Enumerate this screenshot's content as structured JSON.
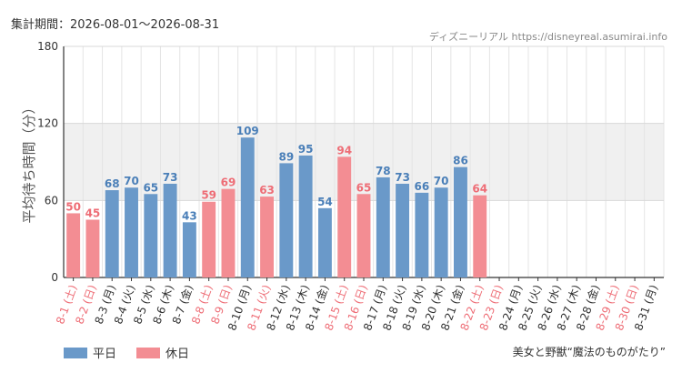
{
  "header": {
    "period": "集計期間：2026-08-01～2026-08-31",
    "source": "ディズニーリアル https://disneyreal.asumirai.info"
  },
  "footer": {
    "caption": "美女と野獣“魔法のものがたり”"
  },
  "colors": {
    "weekday": "#6a99c9",
    "holiday": "#f38d93",
    "weekday_text": "#4a7fb8",
    "holiday_text": "#ee6d76",
    "band": "#f0f0f0",
    "grid": "#e4e4e4",
    "axis": "#333333"
  },
  "chart_data": {
    "type": "bar",
    "ylabel": "平均待ち時間（分）",
    "ylim": [
      0,
      180
    ],
    "yticks": [
      0,
      60,
      120,
      180
    ],
    "band": [
      60,
      120
    ],
    "legend": [
      {
        "name": "平日",
        "kind": "weekday"
      },
      {
        "name": "休日",
        "kind": "holiday"
      }
    ],
    "categories": [
      "8-1 (土)",
      "8-2 (日)",
      "8-3 (月)",
      "8-4 (火)",
      "8-5 (水)",
      "8-6 (木)",
      "8-7 (金)",
      "8-8 (土)",
      "8-9 (日)",
      "8-10 (月)",
      "8-11 (火)",
      "8-12 (水)",
      "8-13 (木)",
      "8-14 (金)",
      "8-15 (土)",
      "8-16 (日)",
      "8-17 (月)",
      "8-18 (火)",
      "8-19 (水)",
      "8-20 (木)",
      "8-21 (金)",
      "8-22 (土)",
      "8-23 (日)",
      "8-24 (月)",
      "8-25 (火)",
      "8-26 (水)",
      "8-27 (木)",
      "8-28 (金)",
      "8-29 (土)",
      "8-30 (日)",
      "8-31 (月)"
    ],
    "kinds": [
      "holiday",
      "holiday",
      "weekday",
      "weekday",
      "weekday",
      "weekday",
      "weekday",
      "holiday",
      "holiday",
      "weekday",
      "holiday",
      "weekday",
      "weekday",
      "weekday",
      "holiday",
      "holiday",
      "weekday",
      "weekday",
      "weekday",
      "weekday",
      "weekday",
      "holiday",
      "holiday",
      "weekday",
      "weekday",
      "weekday",
      "weekday",
      "weekday",
      "holiday",
      "holiday",
      "weekday"
    ],
    "values": [
      50,
      45,
      68,
      70,
      65,
      73,
      43,
      59,
      69,
      109,
      63,
      89,
      95,
      54,
      94,
      65,
      78,
      73,
      66,
      70,
      86,
      64,
      null,
      null,
      null,
      null,
      null,
      null,
      null,
      null,
      null
    ]
  }
}
